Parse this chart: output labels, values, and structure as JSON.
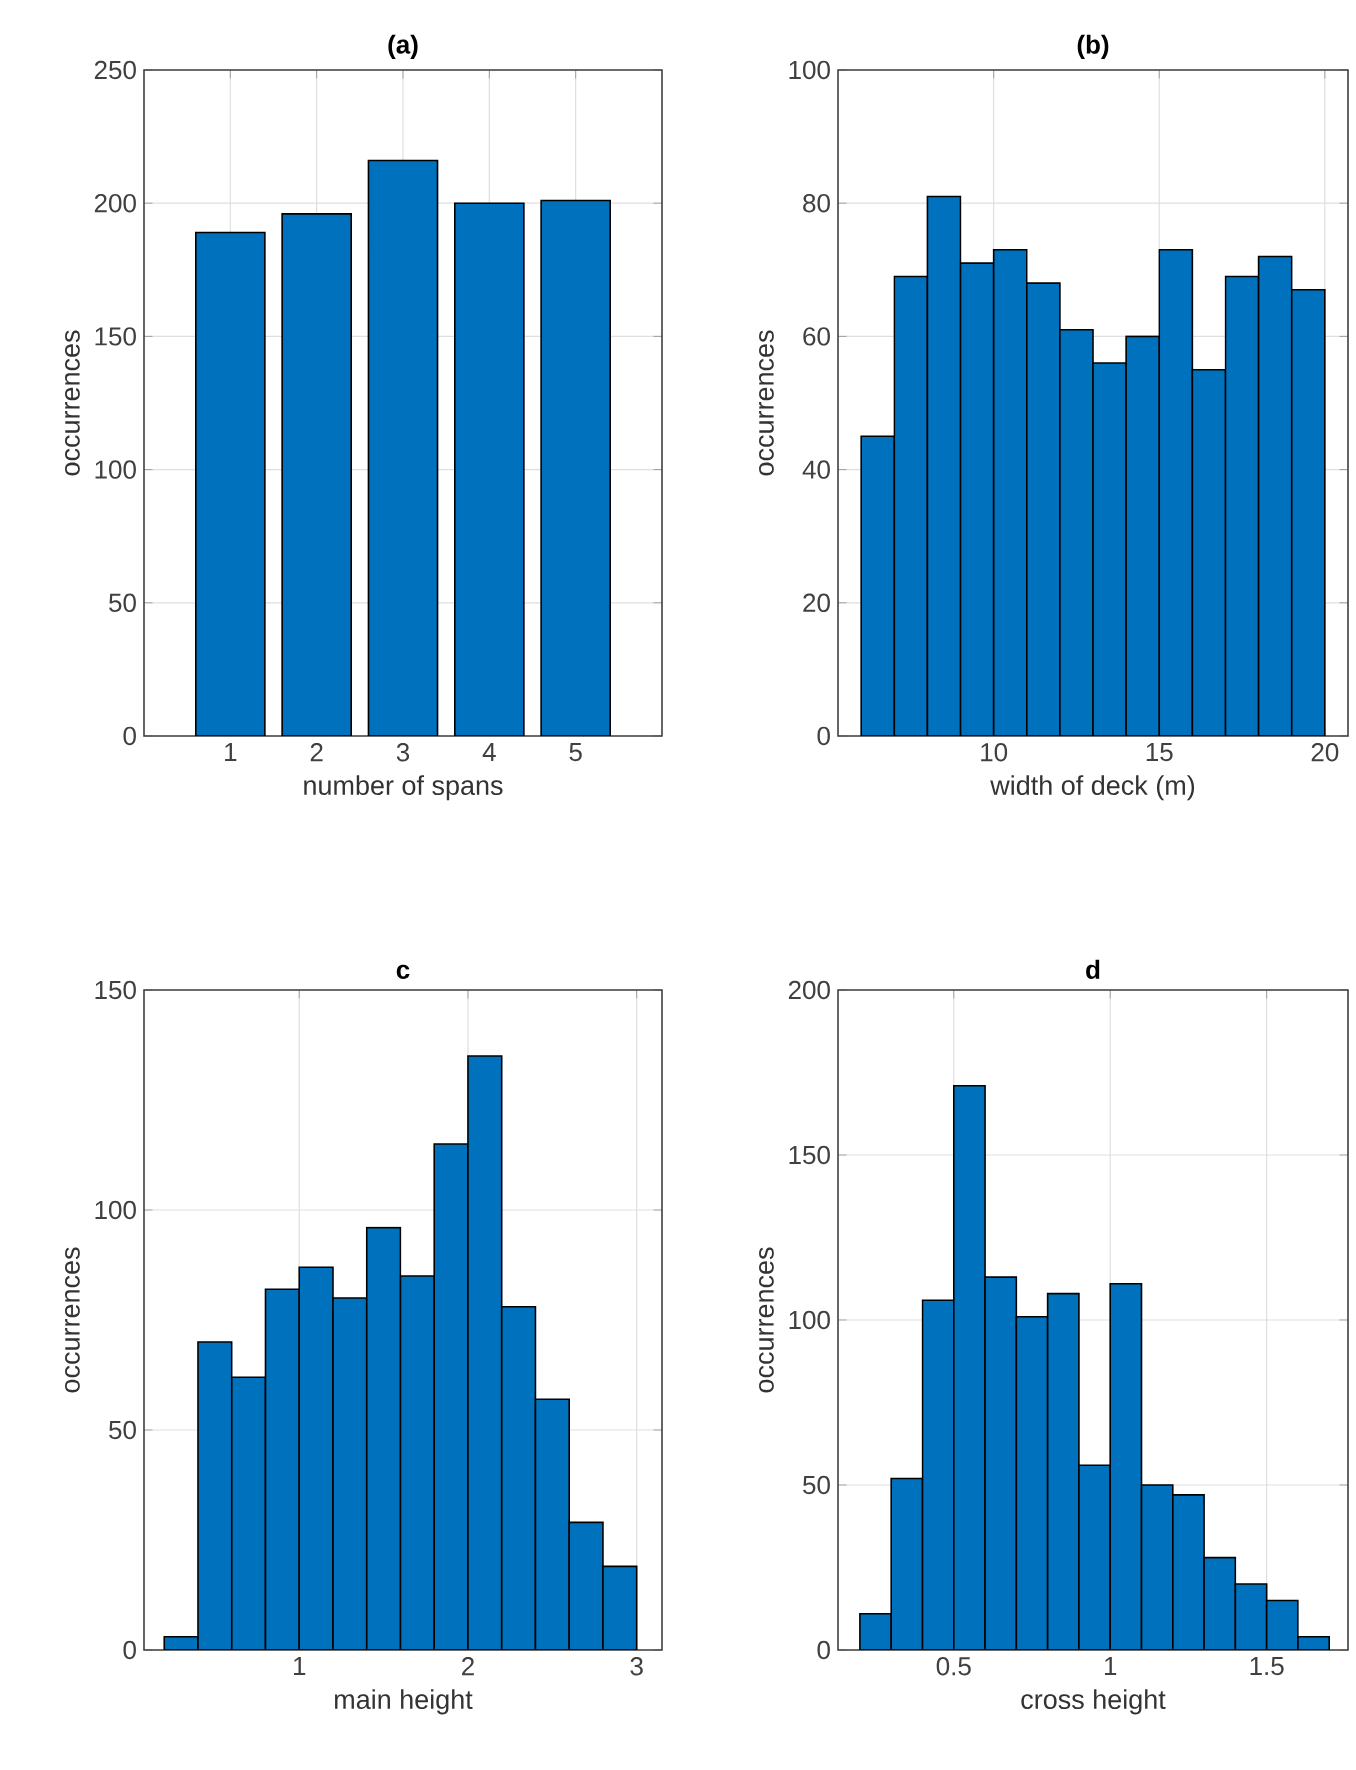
{
  "chart_data": [
    {
      "type": "bar",
      "title": "(a)",
      "xlabel": "number of spans",
      "ylabel": "occurrences",
      "x": [
        1,
        2,
        3,
        4,
        5
      ],
      "values": [
        189,
        196,
        216,
        200,
        201
      ],
      "color": "#0072bd",
      "xlim": [
        0,
        6
      ],
      "xticks": [
        1,
        2,
        3,
        4,
        5
      ],
      "ylim": [
        0,
        250
      ],
      "yticks": [
        0,
        50,
        100,
        150,
        200,
        250
      ],
      "grid": true
    },
    {
      "type": "histogram",
      "title": "(b)",
      "xlabel": "width of deck (m)",
      "ylabel": "occurrences",
      "bins": [
        6,
        7,
        8,
        9,
        10,
        11,
        12,
        13,
        14,
        15,
        16,
        17,
        18,
        19,
        20
      ],
      "values": [
        45,
        69,
        81,
        71,
        73,
        68,
        61,
        56,
        60,
        73,
        55,
        69,
        72,
        67
      ],
      "color": "#0072bd",
      "xlim": [
        5.3,
        20.7
      ],
      "xticks": [
        10,
        15,
        20
      ],
      "ylim": [
        0,
        100
      ],
      "yticks": [
        0,
        20,
        40,
        60,
        80,
        100
      ],
      "grid": true
    },
    {
      "type": "histogram",
      "title": "c",
      "xlabel": "main height",
      "ylabel": "occurrences",
      "bins": [
        0.2,
        0.4,
        0.6,
        0.8,
        1.0,
        1.2,
        1.4,
        1.6,
        1.8,
        2.0,
        2.2,
        2.4,
        2.6,
        2.8,
        3.0
      ],
      "values": [
        3,
        70,
        62,
        82,
        87,
        80,
        96,
        85,
        115,
        135,
        78,
        57,
        29,
        19
      ],
      "color": "#0072bd",
      "xlim": [
        0.08,
        3.15
      ],
      "xticks": [
        1,
        2,
        3
      ],
      "ylim": [
        0,
        150
      ],
      "yticks": [
        0,
        50,
        100,
        150
      ],
      "grid": true
    },
    {
      "type": "histogram",
      "title": "d",
      "xlabel": "cross height",
      "ylabel": "occurrences",
      "bins": [
        0.2,
        0.3,
        0.4,
        0.5,
        0.6,
        0.7,
        0.8,
        0.9,
        1.0,
        1.1,
        1.2,
        1.3,
        1.4,
        1.5,
        1.6,
        1.7
      ],
      "values": [
        11,
        52,
        106,
        171,
        113,
        101,
        108,
        56,
        111,
        50,
        47,
        28,
        20,
        15,
        4
      ],
      "color": "#0072bd",
      "xlim": [
        0.13,
        1.76
      ],
      "xticks": [
        0.5,
        1,
        1.5
      ],
      "ylim": [
        0,
        200
      ],
      "yticks": [
        0,
        50,
        100,
        150,
        200
      ],
      "grid": true
    }
  ]
}
